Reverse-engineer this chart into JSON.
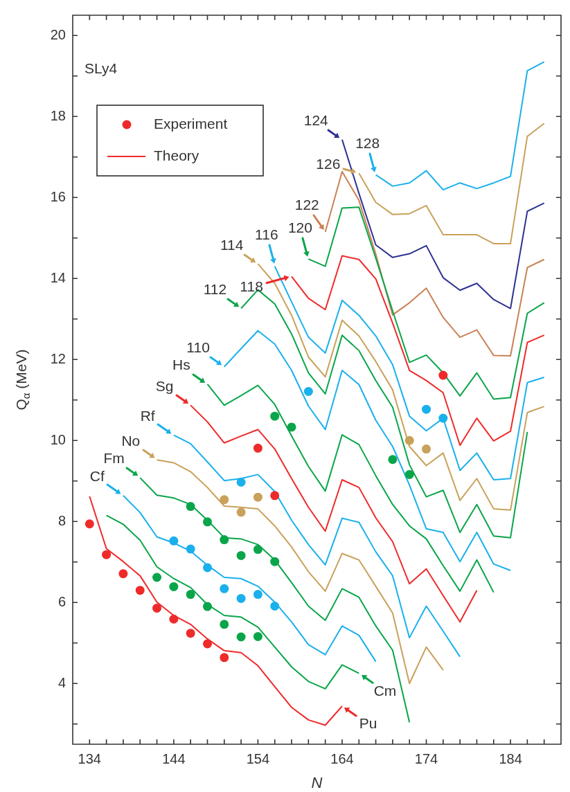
{
  "chart_data": {
    "type": "line",
    "xlabel": "N",
    "ylabel": "Q$_{α}$ (MeV)",
    "legend": "top left",
    "xlim": [
      132,
      190
    ],
    "ylim": [
      2.5,
      20.5
    ],
    "xticks": [
      134,
      {
        "value": 136,
        "label": null
      },
      {
        "value": 138,
        "label": null
      },
      {
        "value": 140,
        "label": null
      },
      {
        "value": 142,
        "label": null
      },
      144,
      {
        "value": 146,
        "label": null
      },
      {
        "value": 148,
        "label": null
      },
      {
        "value": 150,
        "label": null
      },
      {
        "value": 152,
        "label": null
      },
      154,
      {
        "value": 156,
        "label": null
      },
      {
        "value": 158,
        "label": null
      },
      {
        "value": 160,
        "label": null
      },
      {
        "value": 162,
        "label": null
      },
      164,
      {
        "value": 166,
        "label": null
      },
      {
        "value": 168,
        "label": null
      },
      {
        "value": 170,
        "label": null
      },
      {
        "value": 172,
        "label": null
      },
      174,
      {
        "value": 176,
        "label": null
      },
      {
        "value": 178,
        "label": null
      },
      {
        "value": 180,
        "label": null
      },
      {
        "value": 182,
        "label": null
      },
      184,
      {
        "value": 186,
        "label": null
      },
      {
        "value": 188,
        "label": null
      }
    ],
    "yticks": [
      {
        "value": 3,
        "label": null
      },
      4,
      {
        "value": 5,
        "label": null
      },
      6,
      {
        "value": 7,
        "label": null
      },
      8,
      {
        "value": 9,
        "label": null
      },
      10,
      {
        "value": 11,
        "label": null
      },
      12,
      {
        "value": 13,
        "label": null
      },
      14,
      {
        "value": 15,
        "label": null
      },
      16,
      {
        "value": 17,
        "label": null
      },
      18,
      {
        "value": 19,
        "label": null
      },
      20
    ],
    "annotations": [
      {
        "text": "Pu",
        "x": 164,
        "y": 3.44
      },
      {
        "text": "Cm",
        "x": 166,
        "y": 4.25
      },
      {
        "text": "Cf",
        "x": 138,
        "y": 8.64
      },
      {
        "text": "Fm",
        "x": 140,
        "y": 9.08
      },
      {
        "text": "No",
        "x": 142,
        "y": 9.52
      },
      {
        "text": "Rf",
        "x": 144,
        "y": 10.13
      },
      {
        "text": "Sg",
        "x": 146,
        "y": 10.87
      },
      {
        "text": "Hs",
        "x": 148,
        "y": 11.39
      },
      {
        "text": "110",
        "x": 150,
        "y": 11.82
      },
      {
        "text": "112",
        "x": 152,
        "y": 13.26
      },
      {
        "text": "114",
        "x": 154,
        "y": 14.36
      },
      {
        "text": "116",
        "x": 156,
        "y": 14.3
      },
      {
        "text": "118",
        "x": 158,
        "y": 14.05
      },
      {
        "text": "120",
        "x": 160,
        "y": 14.48
      },
      {
        "text": "122",
        "x": 162,
        "y": 15.15
      },
      {
        "text": "124",
        "x": 164,
        "y": 17.43
      },
      {
        "text": "126",
        "x": 166,
        "y": 16.6
      },
      {
        "text": "128",
        "x": 168,
        "y": 16.56
      },
      "SLy4"
    ],
    "series": [
      {
        "type": "line",
        "name": "Theory",
        "color": "#ee2a2a",
        "x": [
          134,
          136,
          138,
          140,
          142,
          144,
          146,
          148,
          150,
          152,
          154,
          156,
          158,
          160,
          162,
          164
        ],
        "values": [
          8.62,
          7.33,
          7.01,
          6.66,
          6.01,
          5.68,
          5.46,
          5.1,
          4.81,
          4.76,
          4.44,
          3.92,
          3.41,
          3.1,
          2.97,
          3.44
        ]
      },
      {
        "type": "line",
        "color": "#0aa54a",
        "x": [
          136,
          138,
          140,
          142,
          144,
          146,
          148,
          150,
          152,
          154,
          156,
          158,
          160,
          162,
          164,
          166
        ],
        "values": [
          8.15,
          7.93,
          7.54,
          6.88,
          6.59,
          6.37,
          5.95,
          5.68,
          5.64,
          5.39,
          4.9,
          4.41,
          4.05,
          3.87,
          4.46,
          4.25
        ]
      },
      {
        "type": "line",
        "color": "#1ab0ec",
        "x": [
          138,
          140,
          142,
          144,
          146,
          148,
          150,
          152,
          154,
          156,
          158,
          160,
          162,
          164,
          166,
          168
        ],
        "values": [
          8.64,
          8.22,
          7.62,
          7.47,
          7.27,
          6.92,
          6.62,
          6.59,
          6.4,
          6.01,
          5.52,
          4.96,
          4.71,
          5.42,
          5.19,
          4.54
        ]
      },
      {
        "type": "line",
        "color": "#0aa54a",
        "x": [
          140,
          142,
          144,
          146,
          148,
          150,
          152,
          154,
          156,
          158,
          160,
          162,
          164,
          166,
          168,
          170,
          172
        ],
        "values": [
          9.08,
          8.65,
          8.58,
          8.42,
          8.03,
          7.6,
          7.57,
          7.43,
          7.05,
          6.49,
          5.91,
          5.56,
          6.34,
          6.13,
          5.42,
          4.82,
          3.04
        ]
      },
      {
        "type": "line",
        "color": "#c9a15a",
        "x": [
          142,
          144,
          146,
          148,
          150,
          152,
          154,
          156,
          158,
          160,
          162,
          164,
          166,
          168,
          170,
          172,
          174,
          176
        ],
        "values": [
          9.52,
          9.45,
          9.23,
          8.84,
          8.38,
          8.35,
          8.31,
          7.89,
          7.37,
          6.76,
          6.28,
          7.21,
          7.05,
          6.4,
          5.74,
          4.0,
          4.9,
          4.33
        ]
      },
      {
        "type": "line",
        "color": "#1ab0ec",
        "x": [
          144,
          146,
          148,
          150,
          152,
          154,
          156,
          158,
          160,
          162,
          164,
          166,
          168,
          170,
          172,
          174,
          176,
          178
        ],
        "values": [
          10.13,
          9.92,
          9.47,
          9.01,
          9.06,
          9.16,
          8.74,
          8.03,
          7.43,
          6.93,
          8.08,
          7.98,
          7.25,
          6.66,
          5.13,
          5.91,
          5.29,
          4.66
        ]
      },
      {
        "type": "line",
        "color": "#ee2a2a",
        "x": [
          146,
          148,
          150,
          152,
          154,
          156,
          158,
          160,
          162,
          164,
          166,
          168,
          170,
          172,
          174,
          176,
          178,
          180
        ],
        "values": [
          10.87,
          10.46,
          9.94,
          10.11,
          10.27,
          9.79,
          9.06,
          8.35,
          7.76,
          9.03,
          8.84,
          8.09,
          7.5,
          6.46,
          6.83,
          6.17,
          5.52,
          6.3
        ]
      },
      {
        "type": "line",
        "color": "#0aa54a",
        "x": [
          148,
          150,
          152,
          154,
          156,
          158,
          160,
          162,
          164,
          166,
          168,
          170,
          172,
          174,
          176,
          178,
          180,
          182
        ],
        "values": [
          11.39,
          10.87,
          11.11,
          11.36,
          10.89,
          10.11,
          9.36,
          8.75,
          10.14,
          9.9,
          9.13,
          8.42,
          7.89,
          7.57,
          6.91,
          6.28,
          7.05,
          6.25
        ]
      },
      {
        "type": "line",
        "color": "#1ab0ec",
        "x": [
          150,
          152,
          154,
          156,
          158,
          160,
          162,
          164,
          166,
          168,
          170,
          172,
          174,
          176,
          178,
          180,
          182,
          184
        ],
        "values": [
          11.82,
          12.27,
          12.71,
          12.38,
          11.73,
          10.85,
          10.27,
          11.73,
          11.38,
          10.5,
          9.85,
          8.9,
          7.82,
          7.73,
          7.01,
          7.73,
          6.95,
          6.79
        ]
      },
      {
        "type": "line",
        "color": "#0aa54a",
        "x": [
          152,
          154,
          156,
          158,
          160,
          162,
          164,
          166,
          168,
          170,
          172,
          174,
          176,
          178,
          180,
          182,
          184,
          186
        ],
        "values": [
          13.26,
          13.72,
          13.37,
          12.63,
          11.67,
          11.15,
          12.6,
          12.22,
          11.48,
          10.82,
          9.4,
          8.61,
          8.77,
          7.73,
          8.42,
          7.64,
          7.6,
          10.21
        ]
      },
      {
        "type": "line",
        "color": "#c9a15a",
        "x": [
          154,
          156,
          158,
          160,
          162,
          164,
          166,
          168,
          170,
          172,
          174,
          176,
          178,
          180,
          182,
          184,
          186,
          188
        ],
        "values": [
          14.36,
          13.88,
          13.09,
          12.06,
          11.57,
          12.97,
          12.58,
          11.95,
          11.25,
          9.85,
          9.38,
          9.69,
          8.52,
          9.06,
          8.31,
          8.28,
          10.69,
          10.84
        ]
      },
      {
        "type": "line",
        "color": "#1ab0ec",
        "x": [
          156,
          158,
          160,
          162,
          164,
          166,
          168,
          170,
          172,
          174,
          176,
          178,
          180,
          182,
          184,
          186,
          188
        ],
        "values": [
          14.3,
          13.42,
          12.55,
          12.16,
          13.46,
          13.09,
          12.58,
          11.87,
          10.6,
          10.24,
          10.55,
          9.26,
          9.69,
          9.03,
          9.06,
          11.43,
          11.56
        ]
      },
      {
        "type": "line",
        "color": "#ee2a2a",
        "x": [
          158,
          160,
          162,
          164,
          166,
          168,
          170,
          172,
          174,
          176,
          178,
          180,
          182,
          184,
          186,
          188
        ],
        "values": [
          14.05,
          13.51,
          13.23,
          14.56,
          14.47,
          13.99,
          12.9,
          11.73,
          11.48,
          11.18,
          9.88,
          10.55,
          9.99,
          10.23,
          12.42,
          12.6
        ]
      },
      {
        "type": "line",
        "color": "#0aa54a",
        "x": [
          160,
          162,
          164,
          166,
          168,
          170,
          172,
          174,
          176,
          178,
          180,
          182,
          184,
          186,
          188
        ],
        "values": [
          14.48,
          14.3,
          15.74,
          15.76,
          14.5,
          13.2,
          11.93,
          12.11,
          11.67,
          11.1,
          11.67,
          11.02,
          11.06,
          13.14,
          13.4
        ]
      },
      {
        "type": "line",
        "color": "#c98155",
        "x": [
          162,
          164,
          166,
          168,
          170,
          172,
          174,
          176,
          178,
          180,
          182,
          184,
          186,
          188
        ],
        "values": [
          15.15,
          16.64,
          15.93,
          14.6,
          13.1,
          13.4,
          13.76,
          13.04,
          12.55,
          12.73,
          12.1,
          12.09,
          14.27,
          14.47
        ]
      },
      {
        "type": "line",
        "color": "#2e3192",
        "x": [
          164,
          166,
          168,
          170,
          172,
          174,
          176,
          178,
          180,
          182,
          184,
          186,
          188
        ],
        "values": [
          17.43,
          16.1,
          14.83,
          14.52,
          14.61,
          14.81,
          14.02,
          13.71,
          13.88,
          13.48,
          13.26,
          15.66,
          15.86
        ]
      },
      {
        "type": "line",
        "color": "#c9a15a",
        "x": [
          166,
          168,
          170,
          172,
          174,
          176,
          178,
          180,
          182,
          184,
          186,
          188
        ],
        "values": [
          16.6,
          15.88,
          15.58,
          15.6,
          15.8,
          15.08,
          15.08,
          15.08,
          14.86,
          14.86,
          17.51,
          17.83
        ]
      },
      {
        "type": "line",
        "color": "#1ab0ec",
        "x": [
          168,
          170,
          172,
          174,
          176,
          178,
          180,
          182,
          184,
          186,
          188
        ],
        "values": [
          16.56,
          16.28,
          16.36,
          16.66,
          16.19,
          16.36,
          16.22,
          16.36,
          16.52,
          19.13,
          19.35
        ]
      },
      {
        "type": "scatter",
        "name": "Experiment",
        "color": "#ee2a2a",
        "x": [
          134,
          136,
          138,
          140,
          142,
          144,
          146,
          148,
          150
        ],
        "values": [
          7.94,
          7.18,
          6.71,
          6.3,
          5.86,
          5.59,
          5.24,
          4.98,
          4.64
        ]
      },
      {
        "type": "scatter",
        "color": "#0aa54a",
        "x": [
          142,
          144,
          146,
          148,
          150,
          152,
          154
        ],
        "values": [
          6.62,
          6.39,
          6.2,
          5.9,
          5.46,
          5.15,
          5.16
        ]
      },
      {
        "type": "scatter",
        "color": "#1ab0ec",
        "x": [
          144,
          146,
          148,
          150,
          152,
          154,
          156
        ],
        "values": [
          7.52,
          7.32,
          6.86,
          6.34,
          6.1,
          6.2,
          5.91
        ]
      },
      {
        "type": "scatter",
        "color": "#0aa54a",
        "x": [
          146,
          148,
          150,
          152,
          154,
          156
        ],
        "values": [
          8.37,
          7.99,
          7.55,
          7.16,
          7.31,
          7.01
        ]
      },
      {
        "type": "scatter",
        "color": "#c9a15a",
        "x": [
          150,
          152,
          154
        ],
        "values": [
          8.54,
          8.23,
          8.6
        ]
      },
      {
        "type": "scatter",
        "color": "#1ab0ec",
        "x": [
          152
        ],
        "values": [
          8.97
        ]
      },
      {
        "type": "scatter",
        "color": "#ee2a2a",
        "x": [
          154,
          156
        ],
        "values": [
          9.81,
          8.64
        ]
      },
      {
        "type": "scatter",
        "color": "#0aa54a",
        "x": [
          156,
          158
        ],
        "values": [
          10.6,
          10.33
        ]
      },
      {
        "type": "scatter",
        "color": "#1ab0ec",
        "x": [
          160
        ],
        "values": [
          11.21
        ]
      },
      {
        "type": "scatter",
        "color": "#0aa54a",
        "x": [
          170,
          172
        ],
        "values": [
          9.53,
          9.16
        ]
      },
      {
        "type": "scatter",
        "color": "#c9a15a",
        "x": [
          172,
          174
        ],
        "values": [
          10.0,
          9.79
        ]
      },
      {
        "type": "scatter",
        "color": "#1ab0ec",
        "x": [
          174,
          176
        ],
        "values": [
          10.77,
          10.55
        ]
      },
      {
        "type": "scatter",
        "color": "#ee2a2a",
        "x": [
          176
        ],
        "values": [
          11.61
        ]
      }
    ]
  }
}
